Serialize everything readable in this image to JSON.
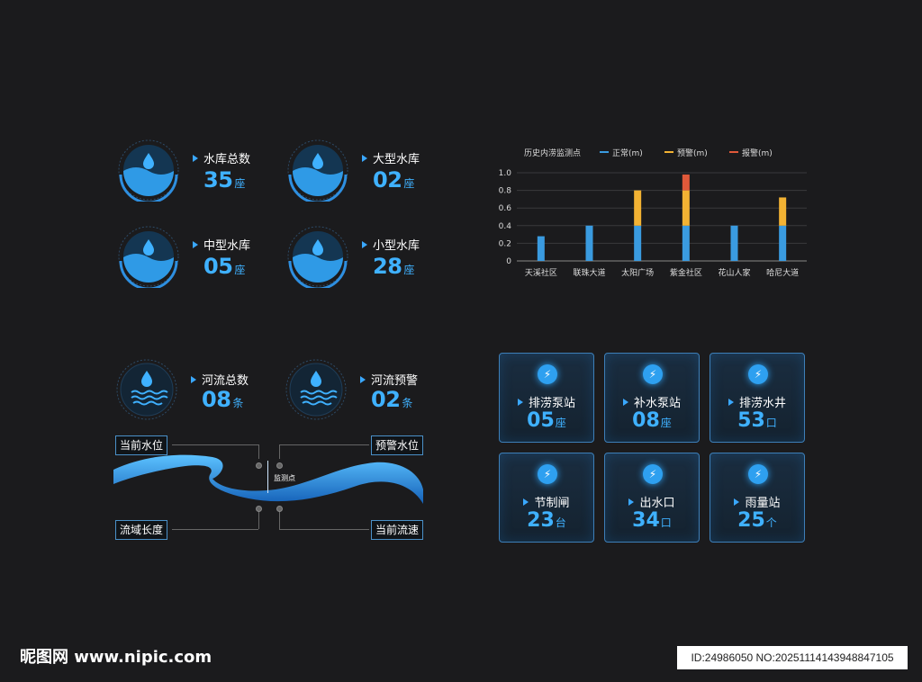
{
  "reservoirs": [
    {
      "label": "水库总数",
      "value": "35",
      "unit": "座"
    },
    {
      "label": "大型水库",
      "value": "02",
      "unit": "座"
    },
    {
      "label": "中型水库",
      "value": "05",
      "unit": "座"
    },
    {
      "label": "小型水库",
      "value": "28",
      "unit": "座"
    }
  ],
  "rivers": [
    {
      "label": "河流总数",
      "value": "08",
      "unit": "条"
    },
    {
      "label": "河流预警",
      "value": "02",
      "unit": "条"
    }
  ],
  "river_diagram": {
    "tag_top_left": "当前水位",
    "tag_top_right": "预警水位",
    "tag_bottom_left": "流域长度",
    "tag_bottom_right": "当前流速",
    "monitor_point": "监测点"
  },
  "chart_data": {
    "type": "bar",
    "title": "历史内涝监测点",
    "categories": [
      "天溪社区",
      "联珠大道",
      "太阳广场",
      "紫金社区",
      "花山人家",
      "哈尼大道"
    ],
    "series": [
      {
        "name": "正常(m)",
        "color": "#3a9be0",
        "values": [
          0.28,
          0.4,
          0.4,
          0.4,
          0.4,
          0.4
        ]
      },
      {
        "name": "预警(m)",
        "color": "#f2b233",
        "values": [
          0,
          0,
          0.4,
          0.4,
          0,
          0.32
        ]
      },
      {
        "name": "报警(m)",
        "color": "#e0593a",
        "values": [
          0,
          0,
          0,
          0.18,
          0,
          0
        ]
      }
    ],
    "stacked": true,
    "ylim": [
      0,
      1.0
    ],
    "yticks": [
      "0",
      "0.2",
      "0.4",
      "0.6",
      "0.8",
      "1.0"
    ],
    "grid": true,
    "legend": "top"
  },
  "facilities": [
    {
      "label": "排涝泵站",
      "value": "05",
      "unit": "座"
    },
    {
      "label": "补水泵站",
      "value": "08",
      "unit": "座"
    },
    {
      "label": "排涝水井",
      "value": "53",
      "unit": "口"
    },
    {
      "label": "节制闸",
      "value": "23",
      "unit": "台"
    },
    {
      "label": "出水口",
      "value": "34",
      "unit": "口"
    },
    {
      "label": "雨量站",
      "value": "25",
      "unit": "个"
    }
  ],
  "watermark": {
    "left": "昵图网 www.nipic.com",
    "right": "ID:24986050 NO:20251114143948847105"
  }
}
